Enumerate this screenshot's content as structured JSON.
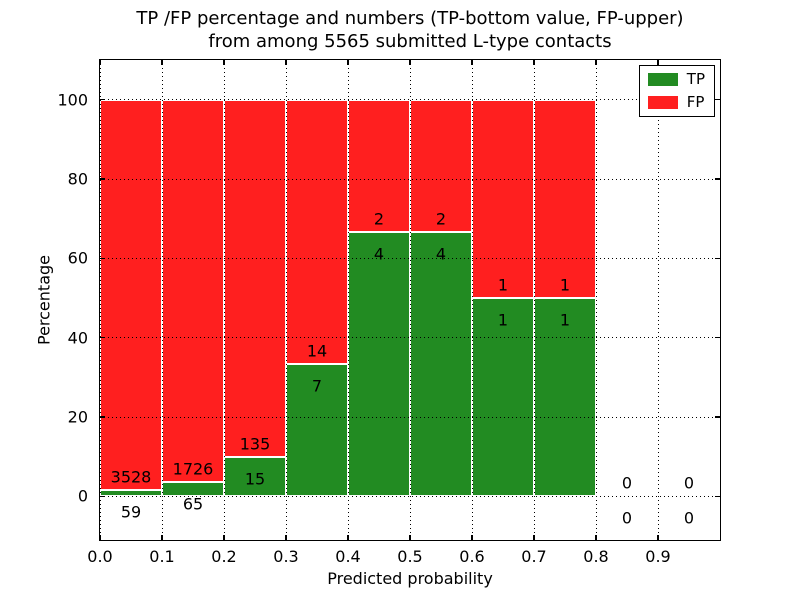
{
  "chart_data": {
    "type": "bar",
    "stacked": true,
    "normalized_to_percent": true,
    "title_lines": [
      "TP /FP percentage and numbers (TP-bottom value, FP-upper)",
      "from among 5565 submitted L-type contacts"
    ],
    "xlabel": "Predicted probability",
    "ylabel": "Percentage",
    "xlim": [
      0.0,
      1.0
    ],
    "ylim": [
      -11,
      110
    ],
    "xticks": [
      "0.0",
      "0.1",
      "0.2",
      "0.3",
      "0.4",
      "0.5",
      "0.6",
      "0.7",
      "0.8",
      "0.9"
    ],
    "yticks": [
      0,
      20,
      40,
      60,
      80,
      100
    ],
    "grid": "dotted, drawn above bars",
    "legend_position": "upper right",
    "series": [
      {
        "name": "TP",
        "color": "#228b22"
      },
      {
        "name": "FP",
        "color": "#ff1f1f"
      }
    ],
    "bins": [
      {
        "x0": 0.0,
        "x1": 0.1,
        "tp": 59,
        "fp": 3528,
        "tp_percent": 1.64
      },
      {
        "x0": 0.1,
        "x1": 0.2,
        "tp": 65,
        "fp": 1726,
        "tp_percent": 3.63
      },
      {
        "x0": 0.2,
        "x1": 0.3,
        "tp": 15,
        "fp": 135,
        "tp_percent": 10.0
      },
      {
        "x0": 0.3,
        "x1": 0.4,
        "tp": 7,
        "fp": 14,
        "tp_percent": 33.33
      },
      {
        "x0": 0.4,
        "x1": 0.5,
        "tp": 4,
        "fp": 2,
        "tp_percent": 66.67
      },
      {
        "x0": 0.5,
        "x1": 0.6,
        "tp": 4,
        "fp": 2,
        "tp_percent": 66.67
      },
      {
        "x0": 0.6,
        "x1": 0.7,
        "tp": 1,
        "fp": 1,
        "tp_percent": 50.0
      },
      {
        "x0": 0.7,
        "x1": 0.8,
        "tp": 1,
        "fp": 1,
        "tp_percent": 50.0
      },
      {
        "x0": 0.8,
        "x1": 0.9,
        "tp": 0,
        "fp": 0,
        "tp_percent": null
      },
      {
        "x0": 0.9,
        "x1": 1.0,
        "tp": 0,
        "fp": 0,
        "tp_percent": null
      }
    ]
  }
}
